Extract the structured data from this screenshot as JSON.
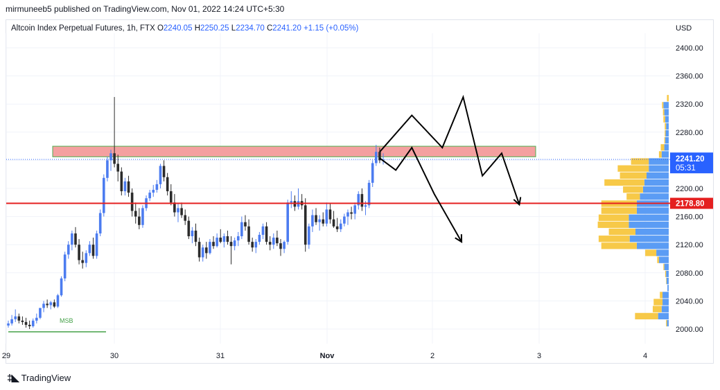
{
  "header": {
    "published_by": "mirmuneeb5 published on TradingView.com, Nov 01, 2022 14:24 UTC+5:30"
  },
  "symbol": {
    "name": "Altcoin Index Perpetual Futures, 1h, FTX",
    "open_label": "O",
    "open": "2240.05",
    "high_label": "H",
    "high": "2250.25",
    "low_label": "L",
    "low": "2234.70",
    "close_label": "C",
    "close": "2241.20",
    "change": "+1.15 (+0.05%)"
  },
  "price_axis": {
    "currency": "USD",
    "ticks": [
      "2400.00",
      "2360.00",
      "2320.00",
      "2280.00",
      "2240.00",
      "2200.00",
      "2160.00",
      "2120.00",
      "2080.00",
      "2040.00",
      "2000.00"
    ],
    "current_price": "2241.20",
    "countdown": "05:31",
    "level_price": "2178.80"
  },
  "time_axis": {
    "ticks": [
      "29",
      "30",
      "31",
      "Nov",
      "2",
      "3",
      "4"
    ]
  },
  "annotations": {
    "msb_label": "MSB"
  },
  "colors": {
    "up": "#4c7cf0",
    "down": "#2b2b2b",
    "resistance_fill": "#f4a0a0",
    "resistance_stroke": "#4caf50",
    "support_line": "#e41f1f",
    "price_label": "#2962ff",
    "vp_yellow": "#f7c948",
    "vp_blue": "#5b9cf4",
    "msb": "#43a047"
  },
  "footer": {
    "brand": "TradingView"
  },
  "chart_data": {
    "type": "candlestick",
    "title": "Altcoin Index Perpetual Futures, 1h, FTX",
    "ylabel": "USD",
    "ylim": [
      1994,
      2425
    ],
    "x_ticks": [
      "29",
      "30",
      "31",
      "Nov",
      "2",
      "3",
      "4"
    ],
    "resistance_zone": [
      2245,
      2260
    ],
    "support_level": 2178.8,
    "last_price": 2241.2,
    "candles_ohlc": [
      [
        2005,
        2012,
        2002,
        2008
      ],
      [
        2008,
        2020,
        2005,
        2014
      ],
      [
        2014,
        2028,
        2010,
        2018
      ],
      [
        2018,
        2022,
        2008,
        2012
      ],
      [
        2012,
        2018,
        2006,
        2010
      ],
      [
        2010,
        2016,
        2002,
        2006
      ],
      [
        2006,
        2012,
        2000,
        2004
      ],
      [
        2004,
        2015,
        2002,
        2012
      ],
      [
        2012,
        2022,
        2008,
        2016
      ],
      [
        2016,
        2028,
        2014,
        2030
      ],
      [
        2030,
        2040,
        2024,
        2036
      ],
      [
        2036,
        2042,
        2030,
        2034
      ],
      [
        2034,
        2040,
        2028,
        2038
      ],
      [
        2038,
        2042,
        2030,
        2032
      ],
      [
        2032,
        2050,
        2030,
        2048
      ],
      [
        2048,
        2075,
        2046,
        2072
      ],
      [
        2072,
        2110,
        2068,
        2106
      ],
      [
        2106,
        2125,
        2100,
        2120
      ],
      [
        2120,
        2140,
        2112,
        2136
      ],
      [
        2136,
        2145,
        2116,
        2120
      ],
      [
        2120,
        2128,
        2092,
        2098
      ],
      [
        2098,
        2110,
        2086,
        2094
      ],
      [
        2094,
        2112,
        2088,
        2108
      ],
      [
        2108,
        2125,
        2104,
        2120
      ],
      [
        2120,
        2130,
        2100,
        2104
      ],
      [
        2104,
        2140,
        2100,
        2136
      ],
      [
        2136,
        2170,
        2132,
        2165
      ],
      [
        2165,
        2220,
        2160,
        2215
      ],
      [
        2215,
        2245,
        2210,
        2240
      ],
      [
        2240,
        2255,
        2225,
        2250
      ],
      [
        2250,
        2330,
        2230,
        2235
      ],
      [
        2235,
        2248,
        2210,
        2224
      ],
      [
        2224,
        2230,
        2190,
        2196
      ],
      [
        2196,
        2215,
        2190,
        2210
      ],
      [
        2210,
        2218,
        2188,
        2194
      ],
      [
        2194,
        2200,
        2160,
        2168
      ],
      [
        2168,
        2180,
        2150,
        2160
      ],
      [
        2160,
        2172,
        2142,
        2148
      ],
      [
        2148,
        2176,
        2144,
        2172
      ],
      [
        2172,
        2190,
        2168,
        2186
      ],
      [
        2186,
        2198,
        2182,
        2194
      ],
      [
        2194,
        2205,
        2188,
        2198
      ],
      [
        2198,
        2212,
        2194,
        2206
      ],
      [
        2206,
        2235,
        2200,
        2232
      ],
      [
        2232,
        2240,
        2210,
        2216
      ],
      [
        2216,
        2222,
        2190,
        2196
      ],
      [
        2196,
        2206,
        2176,
        2180
      ],
      [
        2180,
        2192,
        2160,
        2166
      ],
      [
        2166,
        2178,
        2152,
        2172
      ],
      [
        2172,
        2180,
        2158,
        2162
      ],
      [
        2162,
        2170,
        2148,
        2154
      ],
      [
        2154,
        2160,
        2128,
        2132
      ],
      [
        2132,
        2145,
        2122,
        2140
      ],
      [
        2140,
        2150,
        2118,
        2124
      ],
      [
        2124,
        2130,
        2096,
        2102
      ],
      [
        2102,
        2120,
        2096,
        2116
      ],
      [
        2116,
        2124,
        2100,
        2108
      ],
      [
        2108,
        2128,
        2106,
        2124
      ],
      [
        2124,
        2132,
        2114,
        2118
      ],
      [
        2118,
        2136,
        2116,
        2130
      ],
      [
        2130,
        2142,
        2122,
        2124
      ],
      [
        2124,
        2136,
        2116,
        2132
      ],
      [
        2132,
        2140,
        2120,
        2124
      ],
      [
        2124,
        2132,
        2092,
        2118
      ],
      [
        2118,
        2130,
        2112,
        2126
      ],
      [
        2126,
        2138,
        2118,
        2132
      ],
      [
        2132,
        2160,
        2128,
        2152
      ],
      [
        2152,
        2162,
        2140,
        2146
      ],
      [
        2146,
        2156,
        2120,
        2124
      ],
      [
        2124,
        2130,
        2110,
        2116
      ],
      [
        2116,
        2128,
        2108,
        2124
      ],
      [
        2124,
        2138,
        2120,
        2134
      ],
      [
        2134,
        2150,
        2128,
        2146
      ],
      [
        2146,
        2152,
        2120,
        2124
      ],
      [
        2124,
        2132,
        2112,
        2120
      ],
      [
        2120,
        2136,
        2114,
        2130
      ],
      [
        2130,
        2140,
        2118,
        2122
      ],
      [
        2122,
        2128,
        2104,
        2114
      ],
      [
        2114,
        2126,
        2108,
        2124
      ],
      [
        2124,
        2184,
        2120,
        2180
      ],
      [
        2180,
        2196,
        2172,
        2182
      ],
      [
        2182,
        2190,
        2168,
        2174
      ],
      [
        2174,
        2200,
        2170,
        2182
      ],
      [
        2182,
        2192,
        2170,
        2176
      ],
      [
        2176,
        2186,
        2110,
        2120
      ],
      [
        2120,
        2150,
        2114,
        2146
      ],
      [
        2146,
        2170,
        2138,
        2162
      ],
      [
        2162,
        2172,
        2148,
        2152
      ],
      [
        2152,
        2162,
        2140,
        2156
      ],
      [
        2156,
        2166,
        2146,
        2150
      ],
      [
        2150,
        2180,
        2146,
        2170
      ],
      [
        2170,
        2178,
        2150,
        2156
      ],
      [
        2156,
        2168,
        2144,
        2146
      ],
      [
        2146,
        2158,
        2138,
        2142
      ],
      [
        2142,
        2156,
        2138,
        2150
      ],
      [
        2150,
        2164,
        2146,
        2160
      ],
      [
        2160,
        2170,
        2148,
        2166
      ],
      [
        2166,
        2174,
        2156,
        2164
      ],
      [
        2164,
        2180,
        2156,
        2176
      ],
      [
        2176,
        2196,
        2170,
        2192
      ],
      [
        2192,
        2200,
        2168,
        2174
      ],
      [
        2174,
        2182,
        2162,
        2176
      ],
      [
        2176,
        2212,
        2172,
        2208
      ],
      [
        2208,
        2240,
        2202,
        2236
      ],
      [
        2236,
        2262,
        2232,
        2252
      ],
      [
        2252,
        2258,
        2236,
        2240
      ],
      [
        2240,
        2250,
        2234,
        2241
      ]
    ],
    "volume_profile": [
      {
        "price": 2328,
        "yellow": 4,
        "blue": 0
      },
      {
        "price": 2318,
        "yellow": 3,
        "blue": 12
      },
      {
        "price": 2308,
        "yellow": 3,
        "blue": 10
      },
      {
        "price": 2298,
        "yellow": 4,
        "blue": 8
      },
      {
        "price": 2288,
        "yellow": 3,
        "blue": 6
      },
      {
        "price": 2278,
        "yellow": 2,
        "blue": 7
      },
      {
        "price": 2268,
        "yellow": 2,
        "blue": 8
      },
      {
        "price": 2258,
        "yellow": 8,
        "blue": 10
      },
      {
        "price": 2248,
        "yellow": 6,
        "blue": 16
      },
      {
        "price": 2238,
        "yellow": 40,
        "blue": 45
      },
      {
        "price": 2228,
        "yellow": 70,
        "blue": 45
      },
      {
        "price": 2218,
        "yellow": 60,
        "blue": 50
      },
      {
        "price": 2208,
        "yellow": 90,
        "blue": 55
      },
      {
        "price": 2198,
        "yellow": 45,
        "blue": 58
      },
      {
        "price": 2188,
        "yellow": 30,
        "blue": 65
      },
      {
        "price": 2178,
        "yellow": 80,
        "blue": 72
      },
      {
        "price": 2168,
        "yellow": 80,
        "blue": 72
      },
      {
        "price": 2158,
        "yellow": 68,
        "blue": 90
      },
      {
        "price": 2148,
        "yellow": 70,
        "blue": 90
      },
      {
        "price": 2138,
        "yellow": 60,
        "blue": 75
      },
      {
        "price": 2128,
        "yellow": 70,
        "blue": 88
      },
      {
        "price": 2118,
        "yellow": 80,
        "blue": 72
      },
      {
        "price": 2108,
        "yellow": 25,
        "blue": 28
      },
      {
        "price": 2098,
        "yellow": 4,
        "blue": 22
      },
      {
        "price": 2088,
        "yellow": 2,
        "blue": 10
      },
      {
        "price": 2078,
        "yellow": 2,
        "blue": 6
      },
      {
        "price": 2068,
        "yellow": 1,
        "blue": 5
      },
      {
        "price": 2058,
        "yellow": 0,
        "blue": 3
      },
      {
        "price": 2048,
        "yellow": 6,
        "blue": 14
      },
      {
        "price": 2038,
        "yellow": 20,
        "blue": 14
      },
      {
        "price": 2028,
        "yellow": 20,
        "blue": 16
      },
      {
        "price": 2018,
        "yellow": 52,
        "blue": 24
      },
      {
        "price": 2008,
        "yellow": 2,
        "blue": 4
      }
    ],
    "projection_paths": [
      [
        [
          0.0,
          2252
        ],
        [
          1.0,
          2304
        ],
        [
          1.95,
          2258
        ],
        [
          2.6,
          2330
        ],
        [
          3.2,
          2218
        ],
        [
          3.8,
          2250
        ],
        [
          4.35,
          2177
        ]
      ],
      [
        [
          0.0,
          2243
        ],
        [
          0.5,
          2226
        ],
        [
          1.0,
          2258
        ],
        [
          1.7,
          2192
        ],
        [
          2.55,
          2124
        ]
      ]
    ]
  }
}
